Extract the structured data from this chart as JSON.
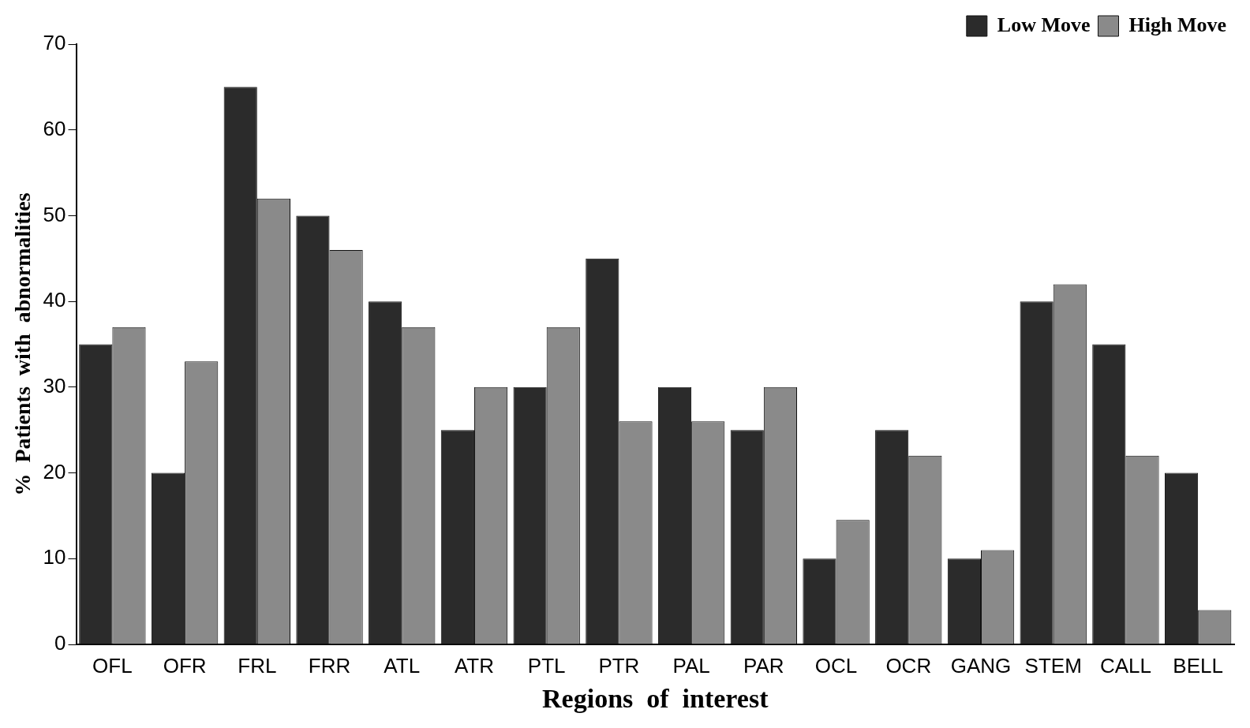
{
  "chart_data": {
    "type": "bar",
    "xlabel": "Regions  of  interest",
    "ylabel": "%  Patients  with  abnormalities",
    "categories": [
      "OFL",
      "OFR",
      "FRL",
      "FRR",
      "ATL",
      "ATR",
      "PTL",
      "PTR",
      "PAL",
      "PAR",
      "OCL",
      "OCR",
      "GANG",
      "STEM",
      "CALL",
      "BELL"
    ],
    "series": [
      {
        "name": "Low Move",
        "color": "#2b2b2b",
        "values": [
          35,
          20,
          65,
          50,
          40,
          25,
          30,
          45,
          30,
          25,
          10,
          25,
          10,
          40,
          35,
          20
        ]
      },
      {
        "name": "High Move",
        "color": "#8a8a8a",
        "values": [
          37,
          33,
          52,
          46,
          37,
          30,
          37,
          26,
          26,
          30,
          14.5,
          22,
          11,
          42,
          22,
          4
        ]
      }
    ],
    "ylim": [
      0,
      70
    ],
    "yticks": [
      0,
      10,
      20,
      30,
      40,
      50,
      60,
      70
    ],
    "grid": false,
    "legend": "top right"
  }
}
